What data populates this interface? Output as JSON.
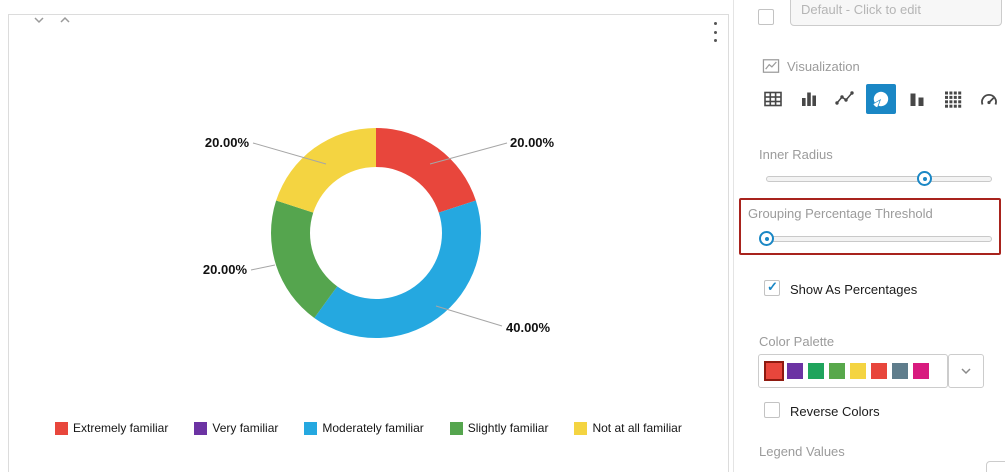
{
  "colors": {
    "accent_blue": "#1A87C5",
    "highlight_red": "#A8231D"
  },
  "chart_data": {
    "type": "pie",
    "donut": true,
    "title": "",
    "legend_position": "bottom",
    "value_labels_format": "0.00%",
    "series": [
      {
        "name": "Extremely familiar",
        "value": 20,
        "color": "#E8463C"
      },
      {
        "name": "Very familiar",
        "value": 0,
        "color": "#6C33A3"
      },
      {
        "name": "Moderately familiar",
        "value": 40,
        "color": "#25A8E0"
      },
      {
        "name": "Slightly familiar",
        "value": 20,
        "color": "#55A54E"
      },
      {
        "name": "Not at all familiar",
        "value": 20,
        "color": "#F4D441"
      }
    ],
    "callouts": [
      {
        "text": "20.00%",
        "series": "Not at all familiar"
      },
      {
        "text": "20.00%",
        "series": "Extremely familiar"
      },
      {
        "text": "20.00%",
        "series": "Slightly familiar"
      },
      {
        "text": "40.00%",
        "series": "Moderately familiar"
      }
    ]
  },
  "sidebar": {
    "title_field": {
      "placeholder": "Default - Click to edit",
      "checkbox_checked": false
    },
    "visualization": {
      "label": "Visualization",
      "types": [
        "table",
        "bar-chart",
        "line-chart",
        "pie-chart",
        "column-chart",
        "pivot-table",
        "gauge"
      ],
      "selected": "pie-chart"
    },
    "inner_radius": {
      "label": "Inner Radius",
      "handle_position_pct": 70
    },
    "grouping_threshold": {
      "label": "Grouping Percentage Threshold",
      "handle_position_pct": 0,
      "highlighted": true
    },
    "show_as_percentages": {
      "label": "Show As Percentages",
      "checked": true
    },
    "color_palette": {
      "label": "Color Palette",
      "swatches": [
        "#E8463C",
        "#6C33A3",
        "#1FA45C",
        "#58A84B",
        "#F4D441",
        "#E8463C",
        "#5F7D8C",
        "#D81B7F"
      ],
      "selected_index": 0
    },
    "reverse_colors": {
      "label": "Reverse Colors",
      "checked": false
    },
    "legend_values_label": "Legend Values"
  }
}
